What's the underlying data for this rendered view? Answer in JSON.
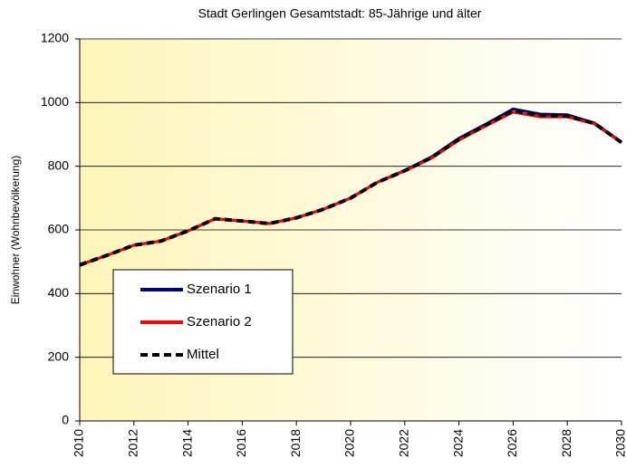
{
  "chart_data": {
    "type": "line",
    "title": "Stadt Gerlingen  Gesamtstadt:  85-Jährige und  älter",
    "y_label": "Einwohner (Wohnbevölkerung)",
    "x": [
      2010,
      2011,
      2012,
      2013,
      2014,
      2015,
      2016,
      2017,
      2018,
      2019,
      2020,
      2021,
      2022,
      2023,
      2024,
      2025,
      2026,
      2027,
      2028,
      2029,
      2030
    ],
    "series": [
      {
        "name": "Szenario 1",
        "color": "#000080",
        "dash": false,
        "values": [
          490,
          520,
          552,
          565,
          597,
          635,
          628,
          620,
          638,
          665,
          700,
          750,
          787,
          830,
          888,
          933,
          980,
          964,
          962,
          936,
          876
        ]
      },
      {
        "name": "Szenario 2",
        "color": "#ff0000",
        "dash": false,
        "values": [
          490,
          520,
          552,
          565,
          597,
          635,
          628,
          620,
          638,
          665,
          700,
          750,
          785,
          826,
          882,
          927,
          970,
          955,
          955,
          933,
          874
        ]
      },
      {
        "name": "Mittel",
        "color": "#000000",
        "dash": true,
        "values": [
          490,
          520,
          552,
          565,
          597,
          635,
          628,
          620,
          638,
          665,
          700,
          750,
          786,
          828,
          885,
          930,
          975,
          960,
          958,
          935,
          875
        ]
      }
    ],
    "xlim": [
      2010,
      2030
    ],
    "xticks": [
      2010,
      2012,
      2014,
      2016,
      2018,
      2020,
      2022,
      2024,
      2026,
      2028,
      2030
    ],
    "ylim": [
      0,
      1200
    ],
    "yticks": [
      0,
      200,
      400,
      600,
      800,
      1000,
      1200
    ],
    "grid": true
  }
}
